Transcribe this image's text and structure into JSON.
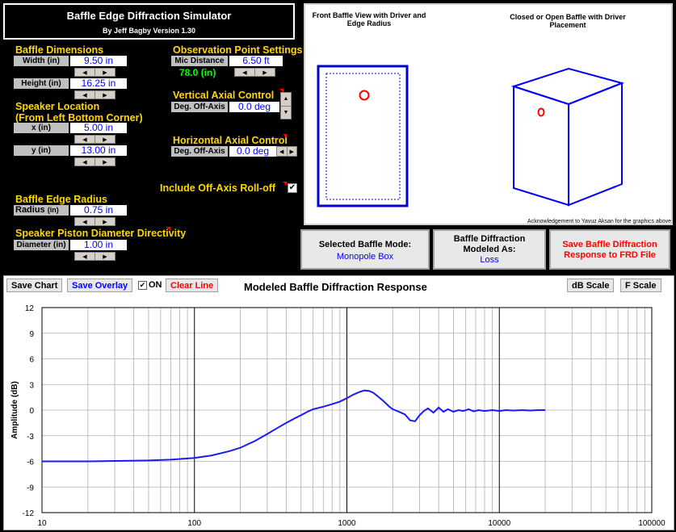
{
  "app": {
    "title": "Baffle Edge Diffraction Simulator",
    "author": "By Jeff Bagby Version 1.30"
  },
  "baffle_dimensions": {
    "heading": "Baffle Dimensions",
    "width_label": "Width (in)",
    "width_value": "9.50 in",
    "height_label": "Height (in)",
    "height_value": "16.25 in"
  },
  "speaker_location": {
    "heading": "Speaker Location",
    "subheading": "(From Left Bottom Corner)",
    "x_label": "x (in)",
    "x_value": "5.00 in",
    "y_label": "y (in)",
    "y_value": "13.00 in"
  },
  "observation": {
    "heading": "Observation Point Settings",
    "mic_label": "Mic Distance",
    "mic_value": "6.50 ft",
    "mic_inches": "78.0 (in)"
  },
  "vertical_axial": {
    "heading": "Vertical Axial Control",
    "label": "Deg. Off-Axis",
    "value": "0.0 deg"
  },
  "horizontal_axial": {
    "heading": "Horizontal Axial Control",
    "label": "Deg. Off-Axis",
    "value": "0.0 deg"
  },
  "rolloff": {
    "label": "Include Off-Axis Roll-off",
    "checked": "✔"
  },
  "edge_radius": {
    "heading": "Baffle Edge Radius",
    "label": "Radius",
    "unit": "(in)",
    "value": "0.75 in"
  },
  "piston": {
    "heading": "Speaker Piston Diameter Directivity",
    "label": "Diameter (in)",
    "value": "1.00 in"
  },
  "graphics": {
    "front_caption": "Front Baffle View with Driver and Edge Radius",
    "box_caption": "Closed or Open Baffle with Driver Placement",
    "ack": "Acknowledgement to Yavuz Aksan for the graphics above"
  },
  "mode_buttons": {
    "mode_label": "Selected Baffle Mode:",
    "mode_value": "Monopole Box",
    "modeled_label1": "Baffle Diffraction",
    "modeled_label2": "Modeled As:",
    "modeled_value": "Loss",
    "save_label1": "Save Baffle Diffraction",
    "save_label2": "Response to FRD File"
  },
  "toolbar": {
    "save_chart": "Save Chart",
    "save_overlay": "Save Overlay",
    "on_check": "✔",
    "on_label": "ON",
    "clear_line": "Clear Line",
    "db_scale": "dB Scale",
    "f_scale": "F Scale"
  },
  "colors": {
    "accent_yellow": "#ffd700",
    "value_blue": "#0000ff",
    "save_red": "#ff0000",
    "green_value": "#00ff00",
    "curve": "#1a1aff"
  },
  "chart_data": {
    "type": "line",
    "title": "Modeled Baffle Diffraction Response",
    "ylabel": "Amplitude (dB)",
    "xlabel": "",
    "xscale": "log",
    "xlim": [
      10,
      100000
    ],
    "ylim": [
      -12,
      12
    ],
    "x_ticks": [
      "10",
      "100",
      "1000",
      "10000",
      "100000"
    ],
    "y_ticks": [
      "12",
      "9",
      "6",
      "3",
      "0",
      "-3",
      "-6",
      "-9",
      "-12"
    ],
    "grid": true,
    "series": [
      {
        "x": [
          10,
          20,
          30,
          50,
          70,
          100,
          130,
          170,
          200,
          250,
          300,
          350,
          400,
          450,
          500,
          550,
          600,
          700,
          800,
          900,
          1000,
          1100,
          1200,
          1300,
          1400,
          1500,
          1600,
          1700,
          1800,
          1900,
          2000,
          2200,
          2400,
          2600,
          2800,
          3000,
          3200,
          3400,
          3700,
          4000,
          4300,
          4600,
          5000,
          5400,
          5800,
          6300,
          6800,
          7300,
          8000,
          9000,
          10000,
          11000,
          12500,
          14000,
          16000,
          18000,
          20000
        ],
        "y": [
          -6.0,
          -6.0,
          -5.95,
          -5.9,
          -5.8,
          -5.6,
          -5.3,
          -4.8,
          -4.4,
          -3.6,
          -2.8,
          -2.1,
          -1.5,
          -1.0,
          -0.6,
          -0.2,
          0.1,
          0.4,
          0.7,
          1.0,
          1.4,
          1.8,
          2.1,
          2.3,
          2.25,
          2.0,
          1.6,
          1.2,
          0.8,
          0.4,
          0.1,
          -0.2,
          -0.5,
          -1.2,
          -1.3,
          -0.6,
          -0.1,
          0.2,
          -0.3,
          0.3,
          -0.2,
          0.1,
          -0.2,
          0.0,
          -0.1,
          0.1,
          -0.15,
          0.0,
          -0.1,
          0.0,
          -0.1,
          0.0,
          -0.05,
          0.0,
          -0.05,
          0.0,
          0.0
        ]
      }
    ]
  }
}
